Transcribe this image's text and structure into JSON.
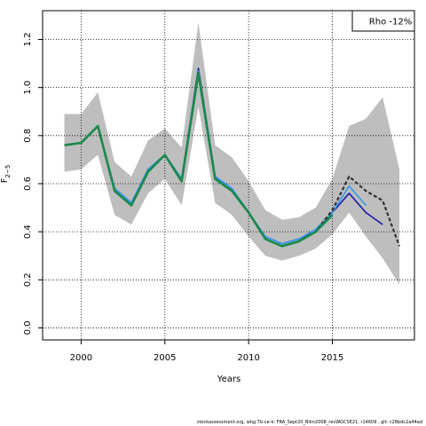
{
  "chart_data": {
    "type": "line",
    "title": "",
    "xlabel": "Years",
    "ylabel_main": "F",
    "ylabel_sub": "2−5",
    "xlim": [
      1997.7,
      2019.9
    ],
    "ylim": [
      -0.05,
      1.32
    ],
    "x_ticks": [
      2000,
      2005,
      2010,
      2015
    ],
    "y_ticks": [
      0.0,
      0.2,
      0.4,
      0.6,
      0.8,
      1.0,
      1.2
    ],
    "y_tick_labels": [
      "0.0",
      "0.2",
      "0.4",
      "0.6",
      "0.8",
      "1.0",
      "1.2"
    ],
    "grid": true,
    "legend_box": {
      "text": "Rho -12%",
      "placement": "top-right"
    },
    "band": {
      "name": "confidence band",
      "x": [
        1999,
        2000,
        2001,
        2002,
        2003,
        2004,
        2005,
        2006,
        2007,
        2008,
        2009,
        2010,
        2011,
        2012,
        2013,
        2014,
        2015,
        2016,
        2017,
        2018,
        2019
      ],
      "lower": [
        0.65,
        0.66,
        0.72,
        0.47,
        0.43,
        0.56,
        0.62,
        0.51,
        0.92,
        0.52,
        0.47,
        0.38,
        0.3,
        0.28,
        0.3,
        0.33,
        0.39,
        0.48,
        0.38,
        0.29,
        0.18
      ],
      "upper": [
        0.89,
        0.89,
        0.98,
        0.69,
        0.63,
        0.78,
        0.83,
        0.75,
        1.27,
        0.76,
        0.71,
        0.61,
        0.49,
        0.45,
        0.46,
        0.5,
        0.62,
        0.84,
        0.87,
        0.96,
        0.66
      ],
      "color": "#bebebe"
    },
    "series": [
      {
        "color": "#1a1aa8",
        "style": "solid",
        "x": [
          1999,
          2000,
          2001,
          2002,
          2003,
          2004,
          2005,
          2006,
          2007,
          2008,
          2009,
          2010,
          2011,
          2012,
          2013,
          2014,
          2015,
          2016,
          2017,
          2018
        ],
        "y": [
          0.76,
          0.77,
          0.84,
          0.58,
          0.52,
          0.66,
          0.72,
          0.62,
          1.08,
          0.63,
          0.58,
          0.48,
          0.38,
          0.35,
          0.37,
          0.4,
          0.48,
          0.56,
          0.48,
          0.43
        ]
      },
      {
        "color": "#3399ee",
        "style": "solid",
        "x": [
          1999,
          2000,
          2001,
          2002,
          2003,
          2004,
          2005,
          2006,
          2007,
          2008,
          2009,
          2010,
          2011,
          2012,
          2013,
          2014,
          2015,
          2016,
          2017
        ],
        "y": [
          0.76,
          0.77,
          0.84,
          0.58,
          0.52,
          0.66,
          0.72,
          0.62,
          1.07,
          0.63,
          0.58,
          0.48,
          0.38,
          0.35,
          0.37,
          0.41,
          0.48,
          0.59,
          0.51
        ]
      },
      {
        "color": "#333333",
        "style": "dashed",
        "x": [
          1999,
          2000,
          2001,
          2002,
          2003,
          2004,
          2005,
          2006,
          2007,
          2008,
          2009,
          2010,
          2011,
          2012,
          2013,
          2014,
          2015,
          2016,
          2017,
          2018,
          2019
        ],
        "y": [
          0.76,
          0.77,
          0.84,
          0.57,
          0.51,
          0.65,
          0.72,
          0.61,
          1.06,
          0.62,
          0.57,
          0.48,
          0.37,
          0.34,
          0.36,
          0.4,
          0.49,
          0.63,
          0.57,
          0.53,
          0.34
        ]
      },
      {
        "color": "#1a8a4a",
        "style": "solid",
        "x": [
          1999,
          2000,
          2001,
          2002,
          2003,
          2004,
          2005,
          2006,
          2007,
          2008,
          2009,
          2010,
          2011,
          2012,
          2013,
          2014,
          2015
        ],
        "y": [
          0.76,
          0.77,
          0.84,
          0.57,
          0.51,
          0.65,
          0.72,
          0.61,
          1.06,
          0.62,
          0.57,
          0.48,
          0.37,
          0.34,
          0.36,
          0.4,
          0.47
        ]
      }
    ]
  },
  "footer_text": "stockassessment.org, whg.7b-ce-k: FRA_Sept20_Blim2008_revWGCSE21, r14609 , git: c28bdc2a44ad"
}
